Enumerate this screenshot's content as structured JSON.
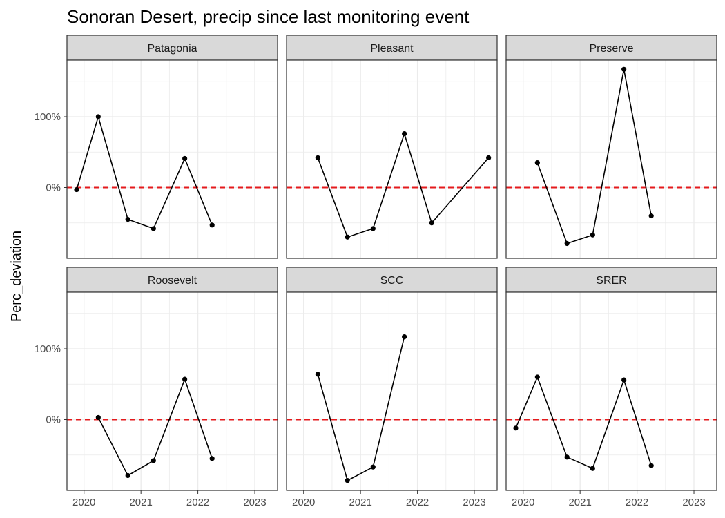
{
  "chart_data": {
    "type": "line",
    "title": "Sonoran Desert, precip since last monitoring event",
    "xlabel": "",
    "ylabel": "Perc_deviation",
    "x_ticks": [
      "2020",
      "2021",
      "2022",
      "2023"
    ],
    "y_ticks": [
      "0%",
      "100%"
    ],
    "xlim": [
      2019.7,
      2023.4
    ],
    "ylim": [
      -1.0,
      1.8
    ],
    "reference_line": {
      "y": 0,
      "style": "dashed",
      "color": "#e41a1c"
    },
    "grid": true,
    "facets": [
      {
        "panel": "Patagonia",
        "x": [
          2019.87,
          2020.25,
          2020.77,
          2021.22,
          2021.77,
          2022.25
        ],
        "y": [
          -0.03,
          1.0,
          -0.45,
          -0.58,
          0.41,
          -0.53
        ]
      },
      {
        "panel": "Pleasant",
        "x": [
          2020.25,
          2020.77,
          2021.22,
          2021.77,
          2022.25,
          2023.25
        ],
        "y": [
          0.42,
          -0.7,
          -0.58,
          0.76,
          -0.5,
          0.42
        ]
      },
      {
        "panel": "Preserve",
        "x": [
          2020.25,
          2020.77,
          2021.22,
          2021.77,
          2022.25
        ],
        "y": [
          0.35,
          -0.79,
          -0.67,
          1.67,
          -0.4
        ]
      },
      {
        "panel": "Roosevelt",
        "x": [
          2020.25,
          2020.77,
          2021.22,
          2021.77,
          2022.25
        ],
        "y": [
          0.03,
          -0.79,
          -0.58,
          0.57,
          -0.55
        ]
      },
      {
        "panel": "SCC",
        "x": [
          2020.25,
          2020.77,
          2021.22,
          2021.77
        ],
        "y": [
          0.64,
          -0.86,
          -0.67,
          1.17
        ]
      },
      {
        "panel": "SRER",
        "x": [
          2019.87,
          2020.25,
          2020.77,
          2021.22,
          2021.77,
          2022.25
        ],
        "y": [
          -0.12,
          0.6,
          -0.53,
          -0.69,
          0.56,
          -0.65
        ]
      }
    ],
    "colors": {
      "line": "#000000",
      "strip": "#d9d9d9",
      "grid": "#ebebeb",
      "reference": "#e41a1c"
    }
  }
}
